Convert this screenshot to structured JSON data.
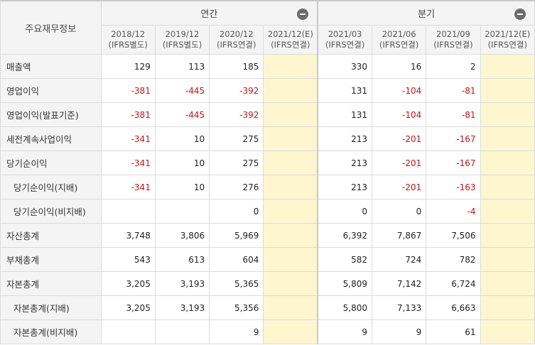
{
  "header": {
    "corner_title": "주요재무정보",
    "annual_label": "연간",
    "quarterly_label": "분기"
  },
  "periods": [
    {
      "date": "2018/12",
      "basis": "(IFRS별도)"
    },
    {
      "date": "2019/12",
      "basis": "(IFRS별도)"
    },
    {
      "date": "2020/12",
      "basis": "(IFRS연결)"
    },
    {
      "date": "2021/12(E)",
      "basis": "(IFRS연결)"
    },
    {
      "date": "2021/03",
      "basis": "(IFRS연결)"
    },
    {
      "date": "2021/06",
      "basis": "(IFRS연결)"
    },
    {
      "date": "2021/09",
      "basis": "(IFRS연결)"
    },
    {
      "date": "2021/12(E)",
      "basis": "(IFRS연결)"
    }
  ],
  "rows": [
    {
      "label": "매출액",
      "sub": false,
      "values": [
        "129",
        "113",
        "185",
        "",
        "330",
        "16",
        "2",
        ""
      ]
    },
    {
      "label": "영업이익",
      "sub": false,
      "values": [
        "-381",
        "-445",
        "-392",
        "",
        "131",
        "-104",
        "-81",
        ""
      ]
    },
    {
      "label": "영업이익(발표기준)",
      "sub": false,
      "values": [
        "-381",
        "-445",
        "-392",
        "",
        "131",
        "-104",
        "-81",
        ""
      ]
    },
    {
      "label": "세전계속사업이익",
      "sub": false,
      "values": [
        "-341",
        "10",
        "275",
        "",
        "213",
        "-201",
        "-167",
        ""
      ]
    },
    {
      "label": "당기순이익",
      "sub": false,
      "values": [
        "-341",
        "10",
        "275",
        "",
        "213",
        "-201",
        "-167",
        ""
      ]
    },
    {
      "label": "당기순이익(지배)",
      "sub": true,
      "values": [
        "-341",
        "10",
        "276",
        "",
        "213",
        "-201",
        "-163",
        ""
      ]
    },
    {
      "label": "당기순이익(비지배)",
      "sub": true,
      "values": [
        "",
        "",
        "0",
        "",
        "0",
        "0",
        "-4",
        ""
      ]
    },
    {
      "label": "자산총계",
      "sub": false,
      "values": [
        "3,748",
        "3,806",
        "5,969",
        "",
        "6,392",
        "7,867",
        "7,506",
        ""
      ]
    },
    {
      "label": "부채총계",
      "sub": false,
      "values": [
        "543",
        "613",
        "604",
        "",
        "582",
        "724",
        "782",
        ""
      ]
    },
    {
      "label": "자본총계",
      "sub": false,
      "values": [
        "3,205",
        "3,193",
        "5,365",
        "",
        "5,809",
        "7,142",
        "6,724",
        ""
      ]
    },
    {
      "label": "자본총계(지배)",
      "sub": true,
      "values": [
        "3,205",
        "3,193",
        "5,356",
        "",
        "5,800",
        "7,133",
        "6,663",
        ""
      ]
    },
    {
      "label": "자본총계(비지배)",
      "sub": true,
      "values": [
        "",
        "",
        "9",
        "",
        "9",
        "9",
        "61",
        ""
      ]
    }
  ],
  "colors": {
    "negative": "#cc1111",
    "estimate_bg": "#fdf6cf",
    "header_bg": "#f4f4f4"
  }
}
